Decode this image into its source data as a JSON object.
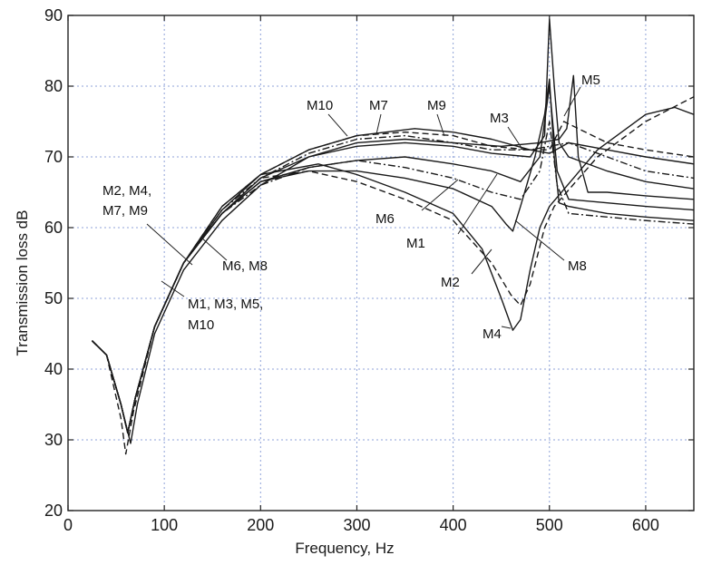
{
  "chart_data": {
    "type": "line",
    "title": "",
    "xlabel": "Frequency,  Hz",
    "ylabel": "Transmission loss   dB",
    "xlim": [
      0,
      650
    ],
    "ylim": [
      20,
      90
    ],
    "x_ticks": [
      "0",
      "100",
      "200",
      "300",
      "400",
      "500",
      "600"
    ],
    "y_ticks": [
      "20",
      "30",
      "40",
      "50",
      "60",
      "70",
      "80",
      "90"
    ],
    "grid": true,
    "legend": "none",
    "series": [
      {
        "name": "M1",
        "style": "solid",
        "points": [
          [
            25,
            44
          ],
          [
            40,
            42
          ],
          [
            55,
            35
          ],
          [
            62,
            31
          ],
          [
            70,
            36
          ],
          [
            90,
            46
          ],
          [
            120,
            55
          ],
          [
            160,
            62
          ],
          [
            200,
            66.5
          ],
          [
            250,
            68.5
          ],
          [
            300,
            69.5
          ],
          [
            350,
            70
          ],
          [
            400,
            69
          ],
          [
            440,
            68
          ],
          [
            470,
            66.5
          ],
          [
            490,
            70
          ],
          [
            500,
            80
          ],
          [
            508,
            68
          ],
          [
            520,
            64
          ],
          [
            560,
            63.5
          ],
          [
            600,
            63
          ],
          [
            650,
            62.5
          ]
        ]
      },
      {
        "name": "M2",
        "style": "dashed",
        "points": [
          [
            25,
            44
          ],
          [
            40,
            42
          ],
          [
            55,
            33
          ],
          [
            60,
            28
          ],
          [
            68,
            34
          ],
          [
            90,
            46
          ],
          [
            120,
            55
          ],
          [
            160,
            62
          ],
          [
            200,
            67
          ],
          [
            250,
            68
          ],
          [
            300,
            66.5
          ],
          [
            350,
            64
          ],
          [
            400,
            61
          ],
          [
            440,
            55
          ],
          [
            460,
            50.5
          ],
          [
            470,
            49
          ],
          [
            480,
            52
          ],
          [
            495,
            60
          ],
          [
            505,
            63
          ],
          [
            550,
            70
          ],
          [
            600,
            75
          ],
          [
            650,
            78.5
          ]
        ]
      },
      {
        "name": "M3",
        "style": "solid",
        "points": [
          [
            25,
            44
          ],
          [
            40,
            42
          ],
          [
            55,
            35
          ],
          [
            62,
            31
          ],
          [
            70,
            36
          ],
          [
            90,
            46
          ],
          [
            120,
            55
          ],
          [
            160,
            62
          ],
          [
            200,
            67
          ],
          [
            250,
            70
          ],
          [
            300,
            71.5
          ],
          [
            350,
            72
          ],
          [
            400,
            71.5
          ],
          [
            440,
            70.5
          ],
          [
            480,
            70
          ],
          [
            495,
            73
          ],
          [
            500,
            89.5
          ],
          [
            505,
            80
          ],
          [
            510,
            72
          ],
          [
            520,
            70
          ],
          [
            560,
            68
          ],
          [
            600,
            66.5
          ],
          [
            650,
            65.5
          ]
        ]
      },
      {
        "name": "M4",
        "style": "solid",
        "points": [
          [
            25,
            44
          ],
          [
            40,
            42
          ],
          [
            55,
            35
          ],
          [
            62,
            31
          ],
          [
            70,
            36
          ],
          [
            90,
            46
          ],
          [
            120,
            55
          ],
          [
            160,
            63
          ],
          [
            200,
            67.5
          ],
          [
            260,
            69
          ],
          [
            300,
            67.5
          ],
          [
            350,
            65
          ],
          [
            400,
            62
          ],
          [
            430,
            57
          ],
          [
            450,
            50
          ],
          [
            462,
            45.5
          ],
          [
            470,
            47
          ],
          [
            480,
            54
          ],
          [
            490,
            60
          ],
          [
            500,
            63
          ],
          [
            550,
            71
          ],
          [
            600,
            76
          ],
          [
            630,
            77
          ],
          [
            650,
            76
          ]
        ]
      },
      {
        "name": "M5",
        "style": "solid",
        "points": [
          [
            25,
            44
          ],
          [
            40,
            42
          ],
          [
            55,
            35
          ],
          [
            65,
            29.5
          ],
          [
            72,
            35
          ],
          [
            90,
            45
          ],
          [
            120,
            54
          ],
          [
            160,
            61
          ],
          [
            200,
            66
          ],
          [
            250,
            70
          ],
          [
            300,
            72
          ],
          [
            350,
            72.5
          ],
          [
            400,
            72
          ],
          [
            450,
            71.5
          ],
          [
            490,
            72
          ],
          [
            510,
            72.5
          ],
          [
            518,
            74
          ],
          [
            525,
            81.5
          ],
          [
            530,
            70
          ],
          [
            540,
            65
          ],
          [
            560,
            65
          ],
          [
            600,
            64.5
          ],
          [
            650,
            64
          ]
        ]
      },
      {
        "name": "M6",
        "style": "dashdot",
        "points": [
          [
            25,
            44
          ],
          [
            40,
            42
          ],
          [
            55,
            35
          ],
          [
            62,
            31
          ],
          [
            70,
            36
          ],
          [
            90,
            46
          ],
          [
            120,
            55
          ],
          [
            160,
            62
          ],
          [
            200,
            66
          ],
          [
            250,
            68.5
          ],
          [
            300,
            69.5
          ],
          [
            350,
            68.5
          ],
          [
            400,
            67
          ],
          [
            440,
            65
          ],
          [
            470,
            64
          ],
          [
            490,
            68
          ],
          [
            500,
            75
          ],
          [
            508,
            66
          ],
          [
            520,
            62
          ],
          [
            560,
            61.5
          ],
          [
            600,
            61
          ],
          [
            650,
            60.5
          ]
        ]
      },
      {
        "name": "M7",
        "style": "dashed",
        "points": [
          [
            25,
            44
          ],
          [
            40,
            42
          ],
          [
            55,
            35
          ],
          [
            62,
            31
          ],
          [
            70,
            36
          ],
          [
            90,
            46
          ],
          [
            120,
            55
          ],
          [
            160,
            63
          ],
          [
            200,
            67.5
          ],
          [
            250,
            71
          ],
          [
            300,
            73
          ],
          [
            350,
            73.5
          ],
          [
            400,
            73
          ],
          [
            440,
            71.5
          ],
          [
            480,
            71
          ],
          [
            500,
            71
          ],
          [
            515,
            75
          ],
          [
            530,
            74
          ],
          [
            560,
            72
          ],
          [
            600,
            71
          ],
          [
            650,
            70
          ]
        ]
      },
      {
        "name": "M8",
        "style": "solid",
        "points": [
          [
            25,
            44
          ],
          [
            40,
            42
          ],
          [
            55,
            35
          ],
          [
            62,
            31
          ],
          [
            70,
            36
          ],
          [
            90,
            46
          ],
          [
            120,
            55
          ],
          [
            160,
            62
          ],
          [
            200,
            66.5
          ],
          [
            250,
            68
          ],
          [
            300,
            68
          ],
          [
            350,
            67
          ],
          [
            400,
            65.5
          ],
          [
            440,
            63
          ],
          [
            455,
            60.5
          ],
          [
            462,
            59.5
          ],
          [
            470,
            63
          ],
          [
            485,
            70
          ],
          [
            495,
            76
          ],
          [
            500,
            81
          ],
          [
            505,
            70
          ],
          [
            510,
            63.5
          ],
          [
            520,
            63
          ],
          [
            560,
            62
          ],
          [
            600,
            61.5
          ],
          [
            650,
            61
          ]
        ]
      },
      {
        "name": "M9",
        "style": "dashdot",
        "points": [
          [
            25,
            44
          ],
          [
            40,
            42
          ],
          [
            55,
            35
          ],
          [
            62,
            31
          ],
          [
            70,
            36
          ],
          [
            90,
            46
          ],
          [
            120,
            55
          ],
          [
            160,
            62.5
          ],
          [
            200,
            67
          ],
          [
            250,
            70.5
          ],
          [
            300,
            72.5
          ],
          [
            350,
            73
          ],
          [
            400,
            72
          ],
          [
            440,
            71
          ],
          [
            480,
            71
          ],
          [
            500,
            71.5
          ],
          [
            520,
            72
          ],
          [
            560,
            70
          ],
          [
            600,
            68
          ],
          [
            650,
            67
          ]
        ]
      },
      {
        "name": "M10",
        "style": "solid",
        "points": [
          [
            25,
            44
          ],
          [
            40,
            42
          ],
          [
            55,
            35
          ],
          [
            62,
            31
          ],
          [
            70,
            36
          ],
          [
            90,
            46
          ],
          [
            120,
            55
          ],
          [
            160,
            62.5
          ],
          [
            200,
            67.5
          ],
          [
            250,
            71
          ],
          [
            300,
            73
          ],
          [
            360,
            74
          ],
          [
            400,
            73.5
          ],
          [
            440,
            72.5
          ],
          [
            480,
            71
          ],
          [
            500,
            70.5
          ],
          [
            520,
            72
          ],
          [
            560,
            71
          ],
          [
            600,
            70
          ],
          [
            650,
            69
          ]
        ]
      }
    ],
    "annotations": [
      "M1, M3, M5,",
      "M10",
      "M2, M4,",
      "M7, M9",
      "M6, M8",
      "M10",
      "M7",
      "M9",
      "M3",
      "M5",
      "M6",
      "M1",
      "M8",
      "M2",
      "M4"
    ]
  }
}
